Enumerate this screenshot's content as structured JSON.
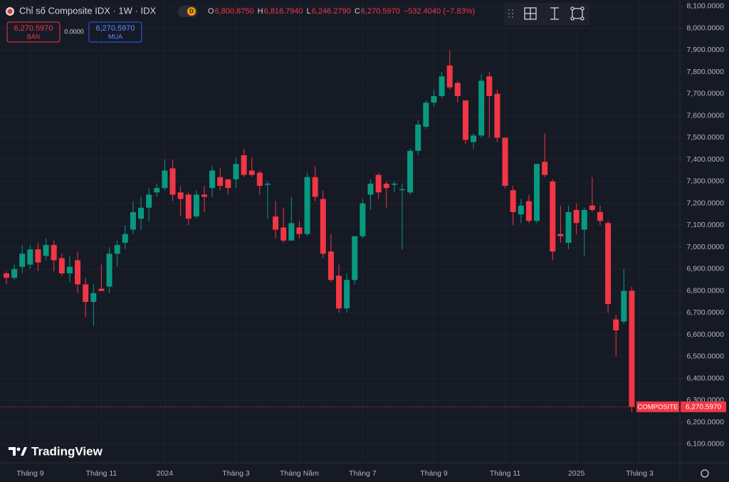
{
  "chart_data": {
    "type": "candlestick",
    "title": "Chỉ số Composite IDX · 1W · IDX",
    "interval_badge": "D",
    "ohlc_legend": [
      {
        "key": "O",
        "value": "6,800.8750"
      },
      {
        "key": "H",
        "value": "6,818.7940"
      },
      {
        "key": "L",
        "value": "6,246.2790"
      },
      {
        "key": "C",
        "value": "6,270.5970"
      }
    ],
    "change": "−532.4040 (−7.83%)",
    "trade_buttons": {
      "sell_price": "6,270.5970",
      "sell_label": "BÁN",
      "spread": "0.0000",
      "buy_price": "6,270.5970",
      "buy_label": "MUA"
    },
    "last_price_tag": {
      "name": "COMPOSITE",
      "value": "6,270.5970"
    },
    "watermark": "TradingView",
    "up_color": "#089981",
    "down_color": "#f23645",
    "grid": true,
    "categories": [
      null,
      null,
      null,
      "Tháng 9",
      null,
      null,
      null,
      null,
      null,
      null,
      null,
      null,
      "Tháng 11",
      null,
      null,
      null,
      null,
      null,
      null,
      null,
      "2024",
      null,
      null,
      null,
      null,
      null,
      null,
      null,
      null,
      "Tháng 3",
      null,
      null,
      null,
      null,
      null,
      null,
      null,
      "Tháng Năm",
      null,
      null,
      null,
      null,
      null,
      null,
      null,
      "Tháng 7",
      null,
      null,
      null,
      null,
      null,
      null,
      null,
      null,
      "Tháng 9",
      null,
      null,
      null,
      null,
      null,
      null,
      null,
      null,
      "Tháng 11",
      null,
      null,
      null,
      null,
      null,
      null,
      null,
      null,
      "2025",
      null,
      null,
      null,
      null,
      null,
      null,
      null,
      "Tháng 3"
    ],
    "open": [
      6880,
      6860,
      6910,
      6920,
      6990,
      6960,
      7010,
      6950,
      6880,
      6940,
      6830,
      6750,
      6810,
      6820,
      6970,
      7020,
      7080,
      7130,
      7180,
      7250,
      7270,
      7360,
      7250,
      7240,
      7140,
      7240,
      7270,
      7320,
      7310,
      7310,
      7420,
      7350,
      7340,
      7285,
      7140,
      7090,
      7030,
      7090,
      7060,
      7320,
      7220,
      6980,
      6870,
      6720,
      6850,
      7050,
      7240,
      7330,
      7290,
      7285,
      7260,
      7250,
      7440,
      7550,
      7660,
      7690,
      7830,
      7750,
      7670,
      7480,
      7510,
      7780,
      7700,
      7500,
      7260,
      7150,
      7210,
      7120,
      7390,
      7300,
      7060,
      7020,
      7170,
      7080,
      7190,
      7160,
      7110,
      6670,
      6660,
      6800.875,
      null
    ],
    "high": [
      6890,
      6920,
      7010,
      7010,
      7020,
      7040,
      7030,
      6970,
      6960,
      6980,
      6860,
      6830,
      6920,
      7000,
      7030,
      7100,
      7210,
      7230,
      7270,
      7290,
      7400,
      7400,
      7280,
      7250,
      7260,
      7280,
      7370,
      7360,
      7310,
      7410,
      7450,
      7410,
      7350,
      7300,
      7210,
      7180,
      7230,
      7120,
      7340,
      7370,
      7260,
      7060,
      6920,
      6880,
      7050,
      7220,
      7310,
      7340,
      7300,
      7300,
      7290,
      7450,
      7580,
      7670,
      7720,
      7800,
      7900,
      7760,
      7670,
      7520,
      7790,
      7800,
      7720,
      7500,
      7280,
      7220,
      7240,
      7380,
      7520,
      7310,
      7190,
      7190,
      7200,
      7180,
      7320,
      7190,
      7120,
      6690,
      6900,
      6818.794,
      null
    ],
    "low": [
      6830,
      6850,
      6880,
      6900,
      6890,
      6940,
      6890,
      6870,
      6840,
      6790,
      6680,
      6640,
      6800,
      6790,
      6910,
      6990,
      7060,
      7080,
      7120,
      7230,
      7260,
      7210,
      7140,
      7100,
      7130,
      7160,
      7230,
      7260,
      7240,
      7270,
      7320,
      7320,
      7240,
      7130,
      7040,
      7020,
      7030,
      7040,
      7050,
      7210,
      6950,
      6840,
      6700,
      6700,
      6830,
      7040,
      7170,
      7220,
      7180,
      7250,
      6990,
      7240,
      7420,
      7540,
      7640,
      7680,
      7720,
      7660,
      7470,
      7450,
      7500,
      7500,
      7480,
      7270,
      7100,
      7110,
      7110,
      7110,
      7320,
      6940,
      7020,
      6990,
      7060,
      6960,
      7160,
      7100,
      6700,
      6500,
      6650,
      6246.279,
      null
    ],
    "close": [
      6860,
      6900,
      6970,
      6990,
      6930,
      7010,
      6940,
      6880,
      6910,
      6830,
      6750,
      6790,
      6800,
      6970,
      7010,
      7060,
      7160,
      7180,
      7240,
      7270,
      7350,
      7240,
      7220,
      7130,
      7240,
      7230,
      7350,
      7280,
      7270,
      7380,
      7330,
      7330,
      7280,
      7290,
      7080,
      7030,
      7110,
      7060,
      7320,
      7230,
      6970,
      6850,
      6720,
      6850,
      7050,
      7200,
      7290,
      7250,
      7270,
      7290,
      7265,
      7440,
      7560,
      7660,
      7690,
      7780,
      7730,
      7690,
      7490,
      7510,
      7760,
      7690,
      7500,
      7280,
      7160,
      7190,
      7120,
      7380,
      7330,
      6980,
      7050,
      7160,
      7110,
      7170,
      7170,
      7120,
      6740,
      6620,
      6800,
      6270.597,
      null
    ],
    "ylim": [
      6015,
      8129
    ],
    "yticks": [
      {
        "value": 6100,
        "label": "6,100.0000"
      },
      {
        "value": 6200,
        "label": "6,200.0000"
      },
      {
        "value": 6300,
        "label": "6,300.0000"
      },
      {
        "value": 6400,
        "label": "6,400.0000"
      },
      {
        "value": 6500,
        "label": "6,500.0000"
      },
      {
        "value": 6600,
        "label": "6,600.0000"
      },
      {
        "value": 6700,
        "label": "6,700.0000"
      },
      {
        "value": 6800,
        "label": "6,800.0000"
      },
      {
        "value": 6900,
        "label": "6,900.0000"
      },
      {
        "value": 7000,
        "label": "7,000.0000"
      },
      {
        "value": 7100,
        "label": "7,100.0000"
      },
      {
        "value": 7200,
        "label": "7,200.0000"
      },
      {
        "value": 7300,
        "label": "7,300.0000"
      },
      {
        "value": 7400,
        "label": "7,400.0000"
      },
      {
        "value": 7500,
        "label": "7,500.0000"
      },
      {
        "value": 7600,
        "label": "7,600.0000"
      },
      {
        "value": 7700,
        "label": "7,700.0000"
      },
      {
        "value": 7800,
        "label": "7,800.0000"
      },
      {
        "value": 7900,
        "label": "7,900.0000"
      },
      {
        "value": 8000,
        "label": "8,000.0000"
      },
      {
        "value": 8100,
        "label": "8,100.0000"
      }
    ]
  }
}
